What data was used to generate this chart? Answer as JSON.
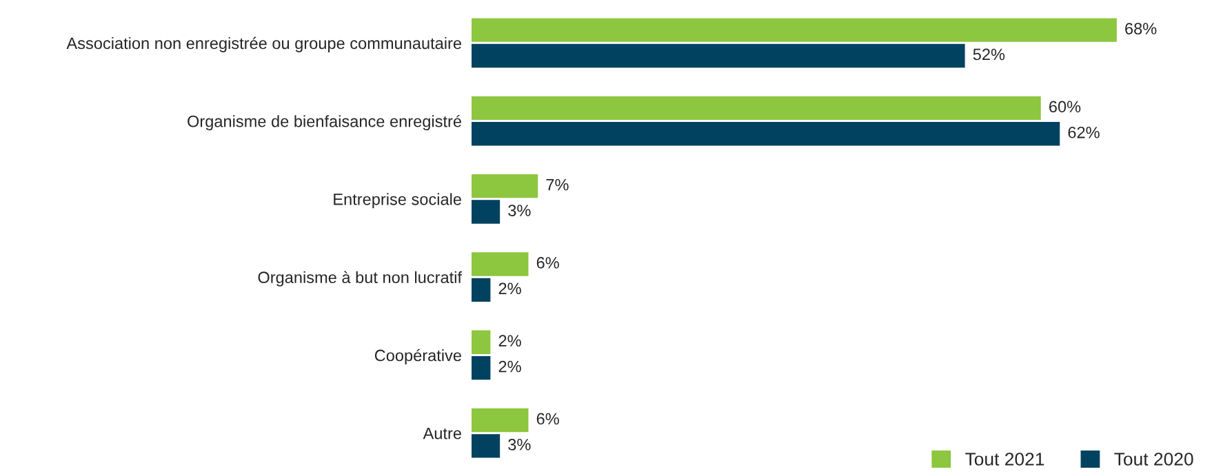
{
  "chart_data": {
    "type": "bar",
    "orientation": "horizontal",
    "categories": [
      "Association non enregistrée ou groupe communautaire",
      "Organisme de bienfaisance enregistré",
      "Entreprise sociale",
      "Organisme à but non lucratif",
      "Coopérative",
      "Autre"
    ],
    "series": [
      {
        "name": "Tout 2021",
        "color": "#8dc63f",
        "values": [
          68,
          60,
          7,
          6,
          2,
          6
        ],
        "value_labels": [
          "68%",
          "60%",
          "7%",
          "6%",
          "2%",
          "6%"
        ]
      },
      {
        "name": "Tout 2020",
        "color": "#00425f",
        "values": [
          52,
          62,
          3,
          2,
          2,
          3
        ],
        "value_labels": [
          "52%",
          "62%",
          "3%",
          "2%",
          "2%",
          "3%"
        ]
      }
    ],
    "legend": "bottom right",
    "grid": false,
    "tick_labels": "y"
  }
}
